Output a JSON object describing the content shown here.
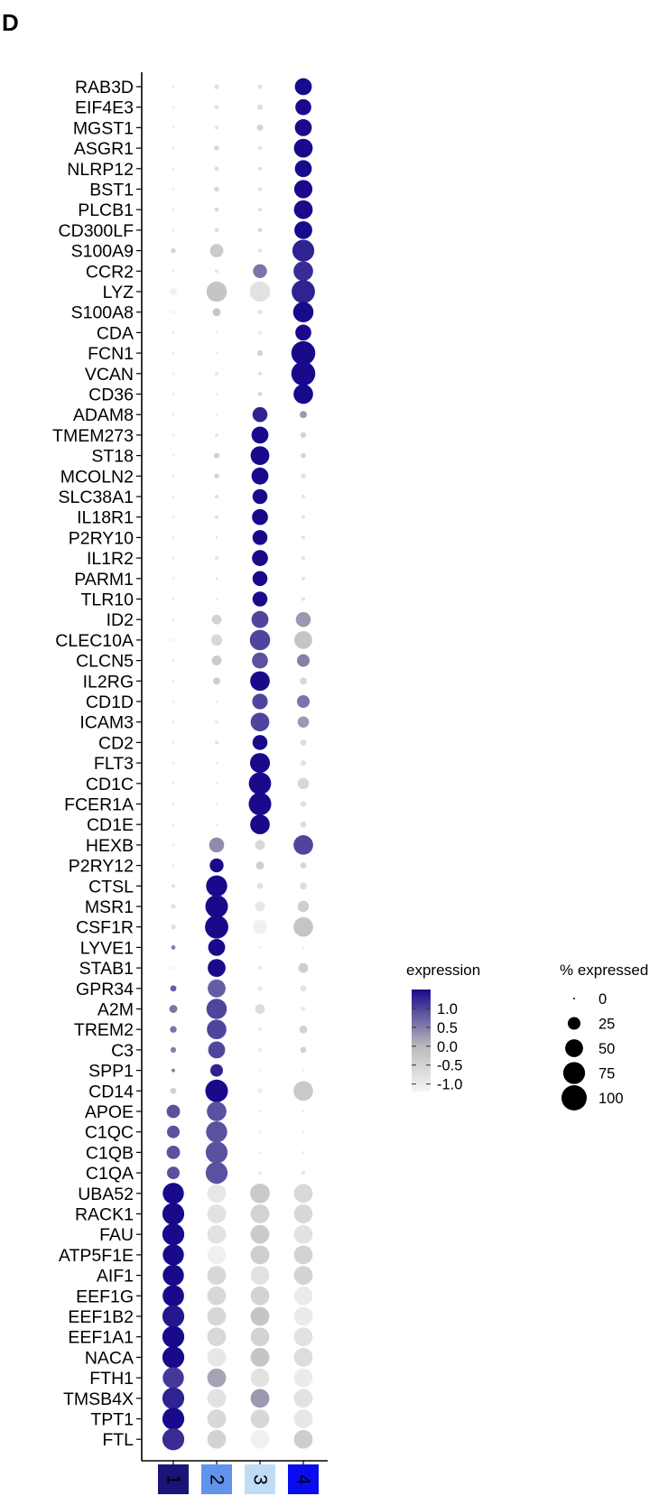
{
  "panel_label": "D",
  "chart_data": {
    "type": "dotplot",
    "title": "",
    "xlabel": "",
    "ylabel": "",
    "clusters": [
      {
        "label": "1",
        "color": "#1a1478",
        "text_color": "#ffffff"
      },
      {
        "label": "2",
        "color": "#5f93ec",
        "text_color": "#000000"
      },
      {
        "label": "3",
        "color": "#bfdcf6",
        "text_color": "#000000"
      },
      {
        "label": "4",
        "color": "#0a0cf0",
        "text_color": "#ffffff"
      }
    ],
    "genes": [
      "RAB3D",
      "EIF4E3",
      "MGST1",
      "ASGR1",
      "NLRP12",
      "BST1",
      "PLCB1",
      "CD300LF",
      "S100A9",
      "CCR2",
      "LYZ",
      "S100A8",
      "CDA",
      "FCN1",
      "VCAN",
      "CD36",
      "ADAM8",
      "TMEM273",
      "ST18",
      "MCOLN2",
      "SLC38A1",
      "IL18R1",
      "P2RY10",
      "IL1R2",
      "PARM1",
      "TLR10",
      "ID2",
      "CLEC10A",
      "CLCN5",
      "IL2RG",
      "CD1D",
      "ICAM3",
      "CD2",
      "FLT3",
      "CD1C",
      "FCER1A",
      "CD1E",
      "HEXB",
      "P2RY12",
      "CTSL",
      "MSR1",
      "CSF1R",
      "LYVE1",
      "STAB1",
      "GPR34",
      "A2M",
      "TREM2",
      "C3",
      "SPP1",
      "CD14",
      "APOE",
      "C1QC",
      "C1QB",
      "C1QA",
      "UBA52",
      "RACK1",
      "FAU",
      "ATP5F1E",
      "AIF1",
      "EEF1G",
      "EEF1B2",
      "EEF1A1",
      "NACA",
      "FTH1",
      "TMSB4X",
      "TPT1",
      "FTL"
    ],
    "pct_expressed": [
      [
        1,
        4,
        3,
        45
      ],
      [
        1,
        3,
        5,
        40
      ],
      [
        1,
        2,
        6,
        45
      ],
      [
        1,
        4,
        2,
        55
      ],
      [
        1,
        3,
        2,
        45
      ],
      [
        1,
        4,
        2,
        52
      ],
      [
        1,
        3,
        2,
        55
      ],
      [
        1,
        3,
        3,
        50
      ],
      [
        4,
        28,
        2,
        75
      ],
      [
        1,
        2,
        30,
        60
      ],
      [
        8,
        65,
        65,
        85
      ],
      [
        1,
        10,
        3,
        65
      ],
      [
        1,
        1,
        2,
        40
      ],
      [
        1,
        1,
        5,
        90
      ],
      [
        1,
        2,
        2,
        90
      ],
      [
        1,
        1,
        3,
        60
      ],
      [
        1,
        1,
        35,
        8
      ],
      [
        1,
        2,
        45,
        5
      ],
      [
        1,
        5,
        55,
        4
      ],
      [
        1,
        4,
        45,
        4
      ],
      [
        1,
        2,
        35,
        2
      ],
      [
        1,
        2,
        40,
        2
      ],
      [
        1,
        1,
        35,
        2
      ],
      [
        1,
        2,
        40,
        2
      ],
      [
        1,
        1,
        35,
        2
      ],
      [
        1,
        1,
        35,
        2
      ],
      [
        1,
        15,
        45,
        35
      ],
      [
        1,
        20,
        65,
        50
      ],
      [
        1,
        15,
        40,
        25
      ],
      [
        1,
        8,
        60,
        8
      ],
      [
        1,
        1,
        38,
        25
      ],
      [
        1,
        2,
        55,
        20
      ],
      [
        1,
        2,
        35,
        6
      ],
      [
        1,
        1,
        62,
        5
      ],
      [
        1,
        1,
        78,
        20
      ],
      [
        1,
        1,
        80,
        5
      ],
      [
        1,
        1,
        60,
        6
      ],
      [
        1,
        35,
        15,
        60
      ],
      [
        1,
        30,
        10,
        6
      ],
      [
        2,
        70,
        6,
        8
      ],
      [
        4,
        80,
        15,
        20
      ],
      [
        4,
        85,
        30,
        60
      ],
      [
        3,
        45,
        1,
        1
      ],
      [
        1,
        50,
        3,
        15
      ],
      [
        6,
        50,
        4,
        6
      ],
      [
        10,
        65,
        15,
        4
      ],
      [
        7,
        60,
        2,
        10
      ],
      [
        5,
        45,
        2,
        6
      ],
      [
        2,
        25,
        1,
        1
      ],
      [
        6,
        80,
        5,
        60
      ],
      [
        28,
        60,
        1,
        1
      ],
      [
        25,
        70,
        1,
        1
      ],
      [
        28,
        75,
        1,
        1
      ],
      [
        25,
        75,
        2,
        3
      ],
      [
        70,
        55,
        60,
        55
      ],
      [
        75,
        55,
        55,
        55
      ],
      [
        75,
        55,
        55,
        55
      ],
      [
        70,
        55,
        55,
        55
      ],
      [
        70,
        55,
        55,
        55
      ],
      [
        72,
        55,
        55,
        55
      ],
      [
        75,
        55,
        55,
        55
      ],
      [
        75,
        55,
        55,
        55
      ],
      [
        75,
        55,
        55,
        55
      ],
      [
        70,
        55,
        55,
        55
      ],
      [
        75,
        55,
        55,
        55
      ],
      [
        75,
        55,
        55,
        55
      ],
      [
        75,
        55,
        55,
        55
      ]
    ],
    "avg_expression": [
      [
        -1.0,
        -0.8,
        -0.8,
        1.5
      ],
      [
        -1.0,
        -0.8,
        -0.7,
        1.5
      ],
      [
        -1.0,
        -0.8,
        -0.5,
        1.5
      ],
      [
        -1.0,
        -0.6,
        -0.8,
        1.5
      ],
      [
        -1.0,
        -0.7,
        -0.7,
        1.5
      ],
      [
        -1.0,
        -0.6,
        -0.8,
        1.5
      ],
      [
        -1.0,
        -0.6,
        -0.7,
        1.5
      ],
      [
        -1.0,
        -0.7,
        -0.6,
        1.5
      ],
      [
        -0.6,
        -0.3,
        -0.8,
        1.3
      ],
      [
        -1.0,
        -0.8,
        0.6,
        1.2
      ],
      [
        -1.1,
        -0.2,
        -0.8,
        1.3
      ],
      [
        -1.0,
        -0.2,
        -0.8,
        1.5
      ],
      [
        -1.0,
        -1.0,
        -1.0,
        1.5
      ],
      [
        -1.0,
        -0.9,
        -0.5,
        1.5
      ],
      [
        -1.0,
        -0.9,
        -0.7,
        1.5
      ],
      [
        -1.0,
        -1.0,
        -0.6,
        1.5
      ],
      [
        -1.0,
        -1.0,
        1.3,
        0.3
      ],
      [
        -1.0,
        -0.9,
        1.5,
        -0.5
      ],
      [
        -1.0,
        -0.5,
        1.5,
        -0.5
      ],
      [
        -1.0,
        -0.5,
        1.5,
        -0.8
      ],
      [
        -1.0,
        -0.7,
        1.5,
        -0.8
      ],
      [
        -1.0,
        -0.7,
        1.5,
        -0.8
      ],
      [
        -1.0,
        -0.8,
        1.5,
        -0.8
      ],
      [
        -1.0,
        -0.8,
        1.5,
        -0.8
      ],
      [
        -1.0,
        -0.8,
        1.5,
        -0.8
      ],
      [
        -1.0,
        -0.9,
        1.5,
        -0.8
      ],
      [
        -1.0,
        -0.5,
        1.0,
        0.3
      ],
      [
        -1.0,
        -0.6,
        1.0,
        -0.2
      ],
      [
        -1.0,
        -0.3,
        0.9,
        0.5
      ],
      [
        -1.0,
        -0.4,
        1.5,
        -0.6
      ],
      [
        -1.0,
        -1.0,
        1.0,
        0.6
      ],
      [
        -1.0,
        -1.0,
        1.0,
        0.3
      ],
      [
        -1.0,
        -0.8,
        1.5,
        -0.7
      ],
      [
        -1.0,
        -1.0,
        1.5,
        -0.8
      ],
      [
        -1.0,
        -1.0,
        1.5,
        -0.6
      ],
      [
        -1.0,
        -1.0,
        1.5,
        -0.7
      ],
      [
        -1.0,
        -1.0,
        1.5,
        -0.7
      ],
      [
        -1.0,
        0.4,
        -0.6,
        1.0
      ],
      [
        -1.0,
        1.5,
        -0.4,
        -0.6
      ],
      [
        -0.7,
        1.5,
        -0.8,
        -0.7
      ],
      [
        -0.8,
        1.5,
        -0.9,
        -0.4
      ],
      [
        -0.8,
        1.5,
        -1.1,
        -0.2
      ],
      [
        0.5,
        1.5,
        -1.0,
        -1.0
      ],
      [
        -1.0,
        1.5,
        -1.0,
        -0.4
      ],
      [
        0.8,
        0.8,
        -1.0,
        -0.8
      ],
      [
        0.6,
        1.0,
        -0.7,
        -1.0
      ],
      [
        0.6,
        1.0,
        -1.0,
        -0.5
      ],
      [
        0.5,
        1.0,
        -1.0,
        -0.5
      ],
      [
        0.5,
        1.3,
        -1.0,
        -1.0
      ],
      [
        -0.5,
        1.5,
        -1.1,
        -0.3
      ],
      [
        0.9,
        0.9,
        -1.0,
        -1.0
      ],
      [
        0.9,
        0.9,
        -1.0,
        -1.0
      ],
      [
        0.9,
        0.9,
        -1.0,
        -1.0
      ],
      [
        0.9,
        0.9,
        -1.0,
        -1.0
      ],
      [
        1.5,
        -0.9,
        -0.3,
        -0.6
      ],
      [
        1.5,
        -0.8,
        -0.5,
        -0.6
      ],
      [
        1.5,
        -0.8,
        -0.3,
        -0.8
      ],
      [
        1.5,
        -1.1,
        -0.4,
        -0.5
      ],
      [
        1.5,
        -0.6,
        -0.8,
        -0.5
      ],
      [
        1.5,
        -0.6,
        -0.5,
        -1.0
      ],
      [
        1.4,
        -0.6,
        -0.2,
        -1.0
      ],
      [
        1.5,
        -0.6,
        -0.5,
        -0.8
      ],
      [
        1.5,
        -0.9,
        -0.2,
        -0.7
      ],
      [
        1.1,
        0.2,
        -0.8,
        -1.0
      ],
      [
        1.3,
        -0.8,
        0.3,
        -0.8
      ],
      [
        1.5,
        -0.6,
        -0.6,
        -0.9
      ],
      [
        1.2,
        -0.5,
        -1.1,
        -0.4
      ]
    ],
    "color_scale": {
      "min": -1.2,
      "max": 1.5,
      "low_color": "#f5f5f5",
      "mid_color": "#bbbbbb",
      "high_color": "#190a8c"
    },
    "legend": {
      "color_title": "expression",
      "color_ticks": [
        1.0,
        0.5,
        0.0,
        -0.5,
        -1.0
      ],
      "color_tick_labels": [
        "1.0",
        "0.5",
        "0.0",
        "-0.5",
        "-1.0"
      ],
      "size_title": "% expressed",
      "size_values": [
        0,
        25,
        50,
        75,
        100
      ],
      "size_labels": [
        "0",
        "25",
        "50",
        "75",
        "100"
      ],
      "placement": "right"
    }
  }
}
